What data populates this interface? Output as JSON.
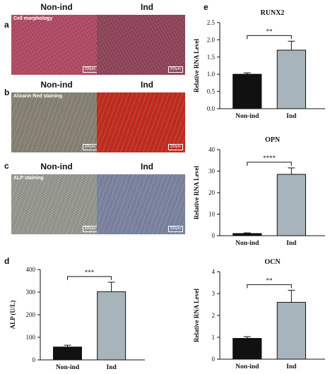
{
  "panels": {
    "a": "a",
    "b": "b",
    "c": "c",
    "d": "d",
    "e": "e"
  },
  "micrographs": {
    "headers": {
      "non_ind": "Non-ind",
      "ind": "Ind"
    },
    "rows": [
      {
        "tag": "Cell morphology",
        "scale_left": "200μm",
        "scale_right": "200μm",
        "left_color": "#b04a62",
        "right_color": "#8e4458",
        "texture": "cell"
      },
      {
        "tag": "Alizarin Red staining",
        "scale_left": "200μm",
        "scale_right": "200μm",
        "left_color": "#8a8576",
        "right_color": "#c92c1f",
        "texture": "fiber"
      },
      {
        "tag": "ALP staining",
        "scale_left": "200μm",
        "scale_right": "200μm",
        "left_color": "#9b9d94",
        "right_color": "#7f87a6",
        "texture": "fiber"
      }
    ]
  },
  "colors": {
    "non_ind_bar": "#111111",
    "ind_bar": "#a7b4bc",
    "axis": "#111111"
  },
  "chart_data": [
    {
      "id": "alp",
      "type": "bar",
      "title": "",
      "categories": [
        "Non-ind",
        "Ind"
      ],
      "values": [
        57,
        302
      ],
      "errors": [
        8,
        42
      ],
      "ylabel": "ALP (U/L)",
      "ylim": [
        0,
        400
      ],
      "yticks": [
        0,
        100,
        200,
        300,
        400
      ],
      "significance": "***"
    },
    {
      "id": "runx2",
      "type": "bar",
      "title": "RUNX2",
      "categories": [
        "Non-ind",
        "Ind"
      ],
      "values": [
        1.0,
        1.7
      ],
      "errors": [
        0.04,
        0.26
      ],
      "ylabel": "Relative RNA Level",
      "ylim": [
        0,
        2.5
      ],
      "yticks": [
        "0.0",
        "0.5",
        "1.0",
        "1.5",
        "2.0",
        "2.5"
      ],
      "significance": "**"
    },
    {
      "id": "opn",
      "type": "bar",
      "title": "OPN",
      "categories": [
        "Non-ind",
        "Ind"
      ],
      "values": [
        1,
        28.5
      ],
      "errors": [
        0.3,
        3
      ],
      "ylabel": "Relative RNA Level",
      "ylim": [
        0,
        40
      ],
      "yticks": [
        0,
        10,
        20,
        30,
        40
      ],
      "significance": "****"
    },
    {
      "id": "ocn",
      "type": "bar",
      "title": "OCN",
      "categories": [
        "Non-ind",
        "Ind"
      ],
      "values": [
        0.95,
        2.6
      ],
      "errors": [
        0.08,
        0.55
      ],
      "ylabel": "Relative RNA Level",
      "ylim": [
        0,
        4
      ],
      "yticks": [
        0,
        1,
        2,
        3,
        4
      ],
      "significance": "**"
    }
  ]
}
